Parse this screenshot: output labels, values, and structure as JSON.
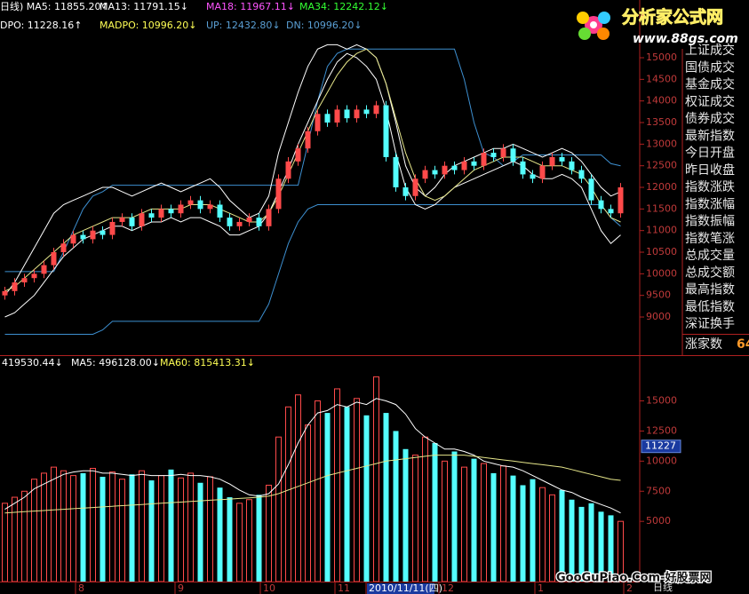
{
  "chart_data": [
    {
      "type": "candlestick",
      "legend_rows": [
        [
          {
            "text": "日线) MA5: 11855.20↑",
            "color": "#ffffff"
          },
          {
            "text": "MA13: 11791.15↓",
            "color": "#ffffff"
          },
          {
            "text": "MA18: 11967.11↓",
            "color": "#ff55ff"
          },
          {
            "text": "MA34: 12242.12↓",
            "color": "#33ff33"
          }
        ],
        [
          {
            "text": "DPO: 11228.16↑",
            "color": "#ffffff"
          },
          {
            "text": "MADPO: 10996.20↓",
            "color": "#ffff55"
          },
          {
            "text": "UP: 12432.80↓",
            "color": "#5a9fd4"
          },
          {
            "text": "DN: 10996.20↓",
            "color": "#5a9fd4"
          }
        ]
      ],
      "open": [
        9500,
        9600,
        9800,
        9900,
        10000,
        10200,
        10500,
        10700,
        10900,
        10800,
        11000,
        10900,
        11200,
        11300,
        11100,
        11400,
        11300,
        11500,
        11400,
        11600,
        11700,
        11500,
        11600,
        11300,
        11100,
        11200,
        11300,
        11100,
        11500,
        12200,
        12600,
        12900,
        13300,
        13700,
        13500,
        13800,
        13600,
        13800,
        13700,
        13900,
        12700,
        12000,
        11800,
        12200,
        12400,
        12300,
        12500,
        12400,
        12600,
        12500,
        12800,
        12700,
        12900,
        12600,
        12300,
        12200,
        12500,
        12700,
        12600,
        12400,
        12200,
        11700,
        11500,
        11400
      ],
      "high": [
        9700,
        9900,
        10000,
        10100,
        10300,
        10600,
        10800,
        11000,
        11000,
        11100,
        11100,
        11300,
        11400,
        11400,
        11500,
        11500,
        11600,
        11600,
        11700,
        11800,
        11800,
        11700,
        11700,
        11400,
        11300,
        11400,
        11400,
        11600,
        12300,
        12700,
        13000,
        13400,
        13800,
        13800,
        13900,
        13900,
        13900,
        13900,
        14000,
        14000,
        12800,
        12100,
        12300,
        12500,
        12500,
        12600,
        12600,
        12700,
        12700,
        12900,
        12900,
        13000,
        13000,
        12700,
        12400,
        12600,
        12800,
        12800,
        12700,
        12500,
        12300,
        11800,
        11600,
        12100
      ],
      "low": [
        9400,
        9500,
        9700,
        9800,
        9900,
        10100,
        10400,
        10600,
        10700,
        10700,
        10800,
        10800,
        11100,
        11000,
        11000,
        11200,
        11200,
        11300,
        11300,
        11500,
        11400,
        11400,
        11200,
        11000,
        11000,
        11100,
        11000,
        11000,
        11400,
        12100,
        12500,
        12800,
        13200,
        13400,
        13400,
        13500,
        13500,
        13600,
        13600,
        12600,
        11900,
        11700,
        11700,
        12100,
        12200,
        12200,
        12300,
        12300,
        12400,
        12400,
        12600,
        12600,
        12500,
        12200,
        12100,
        12100,
        12400,
        12500,
        12300,
        12100,
        11600,
        11400,
        11300,
        11300
      ],
      "close": [
        9600,
        9800,
        9900,
        10000,
        10200,
        10500,
        10700,
        10900,
        10800,
        11000,
        10900,
        11200,
        11300,
        11100,
        11400,
        11300,
        11500,
        11400,
        11600,
        11700,
        11500,
        11600,
        11300,
        11100,
        11200,
        11300,
        11100,
        11500,
        12200,
        12600,
        12900,
        13300,
        13700,
        13500,
        13800,
        13600,
        13800,
        13700,
        13900,
        12700,
        12000,
        11800,
        12200,
        12400,
        12300,
        12500,
        12400,
        12600,
        12500,
        12800,
        12700,
        12900,
        12600,
        12300,
        12200,
        12500,
        12700,
        12600,
        12400,
        12200,
        11700,
        11500,
        11400,
        12000
      ],
      "up_color": "#ff4a4a",
      "down_color": "#54ffff",
      "series": [
        {
          "color": "#3d8fd0",
          "values": [
            10050,
            10050,
            10050,
            10050,
            10050,
            10050,
            10500,
            11000,
            11500,
            11800,
            11900,
            12050,
            12050,
            12050,
            12050,
            12050,
            12050,
            12050,
            12050,
            12050,
            12050,
            12050,
            12050,
            12050,
            12050,
            12050,
            12050,
            12050,
            12050,
            12050,
            12050,
            13000,
            14000,
            14800,
            15100,
            15200,
            15200,
            15200,
            15200,
            15200,
            15200,
            15200,
            15200,
            15200,
            15200,
            15200,
            15200,
            14500,
            13500,
            12800,
            12700,
            12500,
            12600,
            12750,
            12750,
            12750,
            12750,
            12750,
            12750,
            12750,
            12750,
            12750,
            12550,
            12500
          ]
        },
        {
          "color": "#3d8fd0",
          "values": [
            8600,
            8600,
            8600,
            8600,
            8600,
            8600,
            8600,
            8600,
            8600,
            8600,
            8700,
            8900,
            8900,
            8900,
            8900,
            8900,
            8900,
            8900,
            8900,
            8900,
            8900,
            8900,
            8900,
            8900,
            8900,
            8900,
            8900,
            9300,
            10000,
            10700,
            11200,
            11500,
            11600,
            11600,
            11600,
            11600,
            11600,
            11600,
            11600,
            11600,
            11600,
            11600,
            11600,
            11600,
            11600,
            11600,
            11600,
            11600,
            11600,
            11600,
            11600,
            11600,
            11600,
            11600,
            11600,
            11600,
            11600,
            11600,
            11600,
            11600,
            11600,
            11600,
            11300,
            11100
          ]
        },
        {
          "color": "#ffffff",
          "values": [
            9500,
            9800,
            10200,
            10600,
            11000,
            11400,
            11600,
            11700,
            11800,
            11900,
            12000,
            12000,
            11900,
            11800,
            11900,
            12000,
            12100,
            12000,
            11900,
            12000,
            12100,
            12200,
            12000,
            11700,
            11500,
            11300,
            11400,
            11800,
            12800,
            13500,
            14200,
            14800,
            15200,
            15300,
            15300,
            15200,
            15300,
            15200,
            15000,
            14400,
            13500,
            12500,
            12000,
            11800,
            12000,
            12300,
            12500,
            12600,
            12700,
            12800,
            12900,
            12900,
            13000,
            12900,
            12800,
            12700,
            12800,
            12900,
            12800,
            12600,
            12300,
            12000,
            11800,
            11900
          ]
        },
        {
          "color": "#ffffff",
          "values": [
            9000,
            9100,
            9300,
            9500,
            9800,
            10100,
            10400,
            10600,
            10800,
            10900,
            11000,
            11100,
            11100,
            11000,
            11100,
            11200,
            11200,
            11300,
            11200,
            11300,
            11300,
            11200,
            11100,
            10900,
            10900,
            11000,
            11100,
            11400,
            11900,
            12400,
            13000,
            13500,
            14000,
            14500,
            14900,
            15100,
            15000,
            14800,
            14500,
            13800,
            12800,
            12000,
            11600,
            11500,
            11600,
            11800,
            12000,
            12100,
            12200,
            12300,
            12400,
            12500,
            12600,
            12500,
            12300,
            12200,
            12200,
            12300,
            12200,
            12000,
            11500,
            11000,
            10700,
            10900
          ]
        },
        {
          "color": "#e6e68a",
          "values": [
            9600,
            9700,
            9900,
            10100,
            10300,
            10500,
            10700,
            10900,
            11000,
            11100,
            11200,
            11300,
            11300,
            11300,
            11400,
            11500,
            11500,
            11500,
            11500,
            11600,
            11600,
            11600,
            11500,
            11400,
            11300,
            11200,
            11200,
            11400,
            11800,
            12300,
            12800,
            13300,
            13800,
            14200,
            14600,
            14900,
            15100,
            15200,
            15000,
            14400,
            13600,
            12800,
            12200,
            11800,
            11700,
            11800,
            12000,
            12200,
            12400,
            12500,
            12600,
            12700,
            12700,
            12700,
            12600,
            12500,
            12500,
            12500,
            12400,
            12300,
            12000,
            11600,
            11300,
            11200
          ]
        }
      ],
      "ylim": [
        8117,
        16336
      ],
      "yticks": [
        9000,
        9500,
        10000,
        10500,
        11000,
        11500,
        12000,
        12500,
        13000,
        13500,
        14000,
        14500,
        15000
      ]
    },
    {
      "type": "bar",
      "legend": [
        {
          "text": "419530.44↓",
          "color": "#ffffff"
        },
        {
          "text": "MA5: 496128.00↓",
          "color": "#ffffff"
        },
        {
          "text": "MA60: 815413.31↓",
          "color": "#ffff55"
        }
      ],
      "values": [
        6500,
        7000,
        7500,
        8500,
        9000,
        9500,
        9200,
        8800,
        9000,
        9400,
        8700,
        9100,
        8500,
        8900,
        9200,
        8400,
        8800,
        9300,
        8600,
        9000,
        8200,
        8700,
        7800,
        7000,
        6500,
        6800,
        7200,
        8000,
        12000,
        14500,
        15500,
        13000,
        15000,
        14000,
        16000,
        14500,
        15200,
        13800,
        17000,
        14000,
        12500,
        11000,
        10500,
        12000,
        11500,
        10000,
        10800,
        9500,
        10200,
        9800,
        9000,
        9600,
        8800,
        8000,
        8500,
        7800,
        7200,
        7600,
        6800,
        6200,
        6500,
        5800,
        5500,
        5000
      ],
      "series": [
        {
          "color": "#ffffff",
          "values": [
            6000,
            6500,
            7000,
            7700,
            8100,
            8500,
            8900,
            9100,
            9200,
            9200,
            9000,
            9000,
            8900,
            8800,
            8900,
            8800,
            8800,
            8800,
            8900,
            8800,
            8800,
            8700,
            8500,
            8100,
            7600,
            7200,
            7100,
            7300,
            8100,
            9700,
            11500,
            13000,
            14000,
            14200,
            14700,
            14500,
            14900,
            14700,
            15200,
            15000,
            14700,
            13900,
            12700,
            12000,
            11500,
            11000,
            11000,
            10800,
            10500,
            10000,
            9800,
            9600,
            9500,
            9200,
            8800,
            8400,
            8000,
            7600,
            7400,
            7000,
            6700,
            6400,
            6100,
            5700
          ]
        },
        {
          "color": "#e6e68a",
          "values": [
            5700,
            5750,
            5800,
            5850,
            5900,
            5950,
            6000,
            6050,
            6100,
            6150,
            6200,
            6250,
            6300,
            6350,
            6400,
            6450,
            6500,
            6550,
            6600,
            6650,
            6700,
            6750,
            6800,
            6850,
            6900,
            6950,
            7000,
            7100,
            7300,
            7600,
            7900,
            8200,
            8500,
            8800,
            9000,
            9200,
            9400,
            9600,
            9800,
            10000,
            10100,
            10200,
            10300,
            10400,
            10500,
            10500,
            10500,
            10500,
            10400,
            10300,
            10200,
            10100,
            10000,
            9900,
            9800,
            9700,
            9600,
            9500,
            9300,
            9100,
            8900,
            8700,
            8500,
            8400
          ]
        }
      ],
      "last_value": 11227,
      "ylim": [
        0,
        18650
      ],
      "yticks": [
        5000,
        7500,
        10000,
        12500,
        15000
      ]
    }
  ],
  "date_axis": {
    "labels": [
      "8",
      "9",
      "10",
      "11",
      "2010/11/11(四)",
      "12",
      "1",
      "2"
    ],
    "period": "日线"
  },
  "sidebar": {
    "items": [
      "上证成交",
      "国债成交",
      "基金成交",
      "权证成交",
      "债券成交",
      "最新指数",
      "今日开盘",
      "昨日收盘",
      "指数涨跌",
      "指数涨幅",
      "指数振幅",
      "指数笔涨",
      "总成交量",
      "总成交额",
      "最高指数",
      "最低指数",
      "深证换手"
    ],
    "footer_label": "涨家数",
    "footer_value": "64"
  },
  "watermark": {
    "site_name": "分析家公式网",
    "site_url": "www.88gs.com",
    "bottom": "GooGuPiao.Com-好股票网"
  }
}
